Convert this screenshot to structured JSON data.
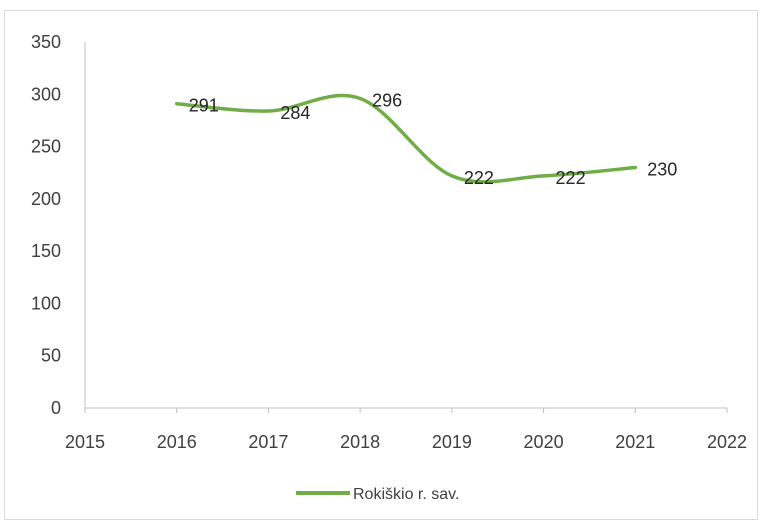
{
  "chart_data": {
    "type": "line",
    "title": "",
    "xlabel": "",
    "ylabel": "",
    "x": [
      2016,
      2017,
      2018,
      2019,
      2020,
      2021
    ],
    "series": [
      {
        "name": "Rokiškio r. sav.",
        "values": [
          291,
          284,
          296,
          222,
          222,
          230
        ],
        "color": "#70ad47"
      }
    ],
    "xlim": [
      2015,
      2022
    ],
    "ylim": [
      0,
      350
    ],
    "xticks": [
      "2015",
      "2016",
      "2017",
      "2018",
      "2019",
      "2020",
      "2021",
      "2022"
    ],
    "yticks": [
      "0",
      "50",
      "100",
      "150",
      "200",
      "250",
      "300",
      "350"
    ],
    "smooth": true,
    "grid": false,
    "legend": "bottom"
  }
}
